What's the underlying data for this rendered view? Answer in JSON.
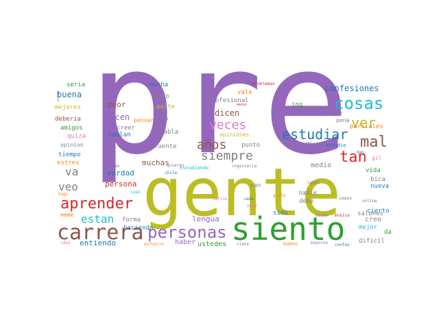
{
  "palette": {
    "purple": "#9467bd",
    "olive": "#bcbd22",
    "green": "#2ca02c",
    "brown": "#8c564b",
    "red": "#d62728",
    "cyan": "#17becf",
    "blue": "#1f77b4",
    "pink": "#e377c2",
    "gray": "#7f7f7f",
    "orange": "#ff7f0e"
  },
  "words": [
    {
      "text": "pre",
      "color": "purple",
      "size": 210
    },
    {
      "text": "gente",
      "color": "olive",
      "size": 96
    },
    {
      "text": "siento",
      "color": "green",
      "size": 46
    },
    {
      "text": "carrera",
      "color": "brown",
      "size": 30
    },
    {
      "text": "personas",
      "color": "purple",
      "size": 24
    },
    {
      "text": "aprender",
      "color": "red",
      "size": 22
    },
    {
      "text": "cosas",
      "color": "cyan",
      "size": 24
    },
    {
      "text": "estudiar",
      "color": "blue",
      "size": 20
    },
    {
      "text": "mal",
      "color": "brown",
      "size": 22
    },
    {
      "text": "tan",
      "color": "red",
      "size": 22
    },
    {
      "text": "ver",
      "color": "olive",
      "size": 20
    },
    {
      "text": "veces",
      "color": "pink",
      "size": 18
    },
    {
      "text": "años",
      "color": "brown",
      "size": 18
    },
    {
      "text": "siempre",
      "color": "gray",
      "size": 18
    },
    {
      "text": "va",
      "color": "gray",
      "size": 16
    },
    {
      "text": "veo",
      "color": "gray",
      "size": 16
    },
    {
      "text": "estan",
      "color": "cyan",
      "size": 16
    },
    {
      "text": "confesiones",
      "color": "blue",
      "size": 12
    },
    {
      "text": "buena",
      "color": "blue",
      "size": 12
    },
    {
      "text": "peor",
      "color": "brown",
      "size": 11
    },
    {
      "text": "hacen",
      "color": "purple",
      "size": 12
    },
    {
      "text": "dicen",
      "color": "brown",
      "size": 12
    },
    {
      "text": "verdad",
      "color": "blue",
      "size": 11
    },
    {
      "text": "muchas",
      "color": "brown",
      "size": 11
    },
    {
      "text": "persona",
      "color": "red",
      "size": 11
    },
    {
      "text": "lengua",
      "color": "purple",
      "size": 11
    },
    {
      "text": "entiendo",
      "color": "blue",
      "size": 11
    },
    {
      "text": "haber",
      "color": "purple",
      "size": 10
    },
    {
      "text": "ustedes",
      "color": "green",
      "size": 10
    },
    {
      "text": "forma",
      "color": "gray",
      "size": 9
    },
    {
      "text": "haciendo",
      "color": "blue",
      "size": 9
    },
    {
      "text": "creer",
      "color": "gray",
      "size": 9
    },
    {
      "text": "habla",
      "color": "gray",
      "size": 9
    },
    {
      "text": "hablan",
      "color": "blue",
      "size": 9
    },
    {
      "text": "fuente",
      "color": "gray",
      "size": 9
    },
    {
      "text": "profesional",
      "color": "gray",
      "size": 9
    },
    {
      "text": "opiniones",
      "color": "olive",
      "size": 8
    },
    {
      "text": "punto",
      "color": "gray",
      "size": 9
    },
    {
      "text": "ing",
      "color": "green",
      "size": 9
    },
    {
      "text": "medio",
      "color": "gray",
      "size": 10
    },
    {
      "text": "van",
      "color": "gray",
      "size": 9
    },
    {
      "text": "sido",
      "color": "blue",
      "size": 9
    },
    {
      "text": "nadie",
      "color": "gray",
      "size": 9
    },
    {
      "text": "debe",
      "color": "gray",
      "size": 9
    },
    {
      "text": "creo",
      "color": "gray",
      "size": 10
    },
    {
      "text": "mejor",
      "color": "cyan",
      "size": 9
    },
    {
      "text": "salones",
      "color": "gray",
      "size": 9
    },
    {
      "text": "dificil",
      "color": "gray",
      "size": 9
    },
    {
      "text": "vida",
      "color": "green",
      "size": 9
    },
    {
      "text": "bica",
      "color": "gray",
      "size": 9
    },
    {
      "text": "nueva",
      "color": "blue",
      "size": 9
    },
    {
      "text": "cierto",
      "color": "blue",
      "size": 9
    },
    {
      "text": "da",
      "color": "green",
      "size": 9
    },
    {
      "text": "parciales",
      "color": "orange",
      "size": 9
    },
    {
      "text": "pena",
      "color": "gray",
      "size": 8
    },
    {
      "text": "dejar",
      "color": "gray",
      "size": 8
    },
    {
      "text": "estudio",
      "color": "blue",
      "size": 7
    },
    {
      "text": "mucha",
      "color": "blue",
      "size": 9
    },
    {
      "text": "lado",
      "color": "gray",
      "size": 9
    },
    {
      "text": "parte",
      "color": "olive",
      "size": 9
    },
    {
      "text": "pensar",
      "color": "orange",
      "size": 8
    },
    {
      "text": "año",
      "color": "gray",
      "size": 9
    },
    {
      "text": "mejores",
      "color": "olive",
      "size": 9
    },
    {
      "text": "deberia",
      "color": "brown",
      "size": 9
    },
    {
      "text": "amigos",
      "color": "green",
      "size": 9
    },
    {
      "text": "quiza",
      "color": "pink",
      "size": 9
    },
    {
      "text": "opinion",
      "color": "gray",
      "size": 8
    },
    {
      "text": "tiempo",
      "color": "blue",
      "size": 9
    },
    {
      "text": "estres",
      "color": "orange",
      "size": 9
    },
    {
      "text": "seria",
      "color": "green",
      "size": 9
    },
    {
      "text": "meme",
      "color": "orange",
      "size": 8
    },
    {
      "text": "vale",
      "color": "orange",
      "size": 9
    },
    {
      "text": "problemas",
      "color": "red",
      "size": 6
    },
    {
      "text": "gil",
      "color": "pink",
      "size": 8
    },
    {
      "text": "igual",
      "color": "gray",
      "size": 6
    },
    {
      "text": "papas",
      "color": "gray",
      "size": 6
    },
    {
      "text": "online",
      "color": "gray",
      "size": 6
    },
    {
      "text": "musica",
      "color": "red",
      "size": 6
    },
    {
      "text": "dicho",
      "color": "purple",
      "size": 6
    },
    {
      "text": "gusta",
      "color": "orange",
      "size": 6
    },
    {
      "text": "cada",
      "color": "blue",
      "size": 6
    },
    {
      "text": "edad",
      "color": "pink",
      "size": 6
    },
    {
      "text": "varios",
      "color": "pink",
      "size": 6
    },
    {
      "text": "ingenieria",
      "color": "gray",
      "size": 6
    },
    {
      "text": "estudiando",
      "color": "cyan",
      "size": 7
    },
    {
      "text": "quieren",
      "color": "gray",
      "size": 6
    },
    {
      "text": "mismas",
      "color": "gray",
      "size": 6
    },
    {
      "text": "chile",
      "color": "blue",
      "size": 6
    },
    {
      "text": "caso",
      "color": "cyan",
      "size": 6
    },
    {
      "text": "hago",
      "color": "orange",
      "size": 6
    },
    {
      "text": "idea",
      "color": "pink",
      "size": 6
    },
    {
      "text": "esfuerzo",
      "color": "orange",
      "size": 6
    },
    {
      "text": "viene",
      "color": "gray",
      "size": 6
    },
    {
      "text": "bueno",
      "color": "orange",
      "size": 7
    },
    {
      "text": "mayores",
      "color": "purple",
      "size": 6
    },
    {
      "text": "confes",
      "color": "blue",
      "size": 6
    },
    {
      "text": "ahi",
      "color": "gray",
      "size": 6
    },
    {
      "text": "dan",
      "color": "blue",
      "size": 6
    },
    {
      "text": "puede",
      "color": "gray",
      "size": 5
    },
    {
      "text": "menos",
      "color": "red",
      "size": 5
    }
  ]
}
